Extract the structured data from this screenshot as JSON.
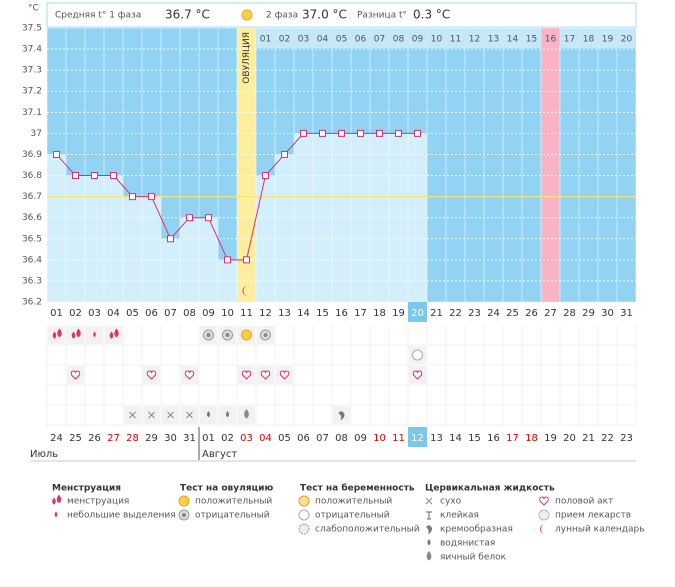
{
  "header": {
    "phase1_label": "Средняя t° 1 фаза",
    "phase1_value": "36.7 °C",
    "phase2_label": "2 фаза",
    "phase2_value": "37.0 °C",
    "diff_label": "Разница t°",
    "diff_value": "0.3 °C"
  },
  "chart_data": {
    "type": "line",
    "y_unit": "°C",
    "ylim": [
      36.2,
      37.5
    ],
    "yticks": [
      36.2,
      36.3,
      36.4,
      36.5,
      36.6,
      36.7,
      36.8,
      36.9,
      37,
      37.1,
      37.2,
      37.3,
      37.4,
      37.5
    ],
    "grid": true,
    "categories": [
      "01",
      "02",
      "03",
      "04",
      "05",
      "06",
      "07",
      "08",
      "09",
      "10",
      "11",
      "12",
      "13",
      "14",
      "15",
      "16",
      "17",
      "18",
      "19",
      "20",
      "21",
      "22",
      "23",
      "24",
      "25",
      "26",
      "27",
      "28",
      "29",
      "30",
      "31"
    ],
    "series": [
      {
        "color": "#d6336c",
        "values": [
          36.9,
          36.8,
          36.8,
          36.8,
          36.7,
          36.7,
          36.5,
          36.6,
          36.6,
          36.4,
          36.4,
          36.8,
          36.9,
          37,
          37,
          37,
          37,
          37,
          37,
          37,
          null,
          null,
          null,
          null,
          null,
          null,
          null,
          null,
          null,
          null,
          null
        ]
      }
    ],
    "coverline": 36.7,
    "coverline_color": "#f2e37a",
    "ovulation_label": "ОВУЛЯЦИЯ",
    "ovulation_day": 11,
    "post_ovulation_days": [
      "01",
      "02",
      "03",
      "04",
      "05",
      "06",
      "07",
      "08",
      "09",
      "10",
      "11",
      "12",
      "13",
      "14",
      "15",
      "16",
      "17",
      "18",
      "19",
      "20"
    ],
    "marked_day": 27,
    "today": 20,
    "plot_marks": [
      null,
      null,
      null,
      null,
      null,
      null,
      null,
      null,
      null,
      null,
      "лунный календарь",
      null,
      null,
      null,
      null,
      null,
      null,
      null,
      null,
      null,
      null,
      null,
      null,
      null,
      null,
      null,
      null,
      null,
      null,
      null,
      null
    ],
    "symptom_rows": [
      [
        "менструация",
        "менструация",
        "небольшие выделения",
        "менструация",
        null,
        null,
        null,
        null,
        "отрицательный",
        "отрицательный",
        "положительный",
        "отрицательный",
        null,
        null,
        null,
        null,
        null,
        null,
        null,
        null,
        null,
        null,
        null,
        null,
        null,
        null,
        null,
        null,
        null,
        null,
        null
      ],
      [
        null,
        null,
        null,
        null,
        null,
        null,
        null,
        null,
        null,
        null,
        null,
        null,
        null,
        null,
        null,
        null,
        null,
        null,
        null,
        "отрицательный ",
        null,
        null,
        null,
        null,
        null,
        null,
        null,
        null,
        null,
        null,
        null
      ],
      [
        null,
        "половой акт",
        null,
        null,
        null,
        "половой акт",
        null,
        "половой акт",
        null,
        null,
        "половой акт",
        "половой акт",
        "половой акт",
        null,
        null,
        null,
        null,
        null,
        null,
        "половой акт",
        null,
        null,
        null,
        null,
        null,
        null,
        null,
        null,
        null,
        null,
        null
      ],
      [
        null,
        null,
        null,
        null,
        null,
        null,
        null,
        null,
        null,
        null,
        null,
        null,
        null,
        null,
        null,
        null,
        null,
        null,
        null,
        null,
        null,
        null,
        null,
        null,
        null,
        null,
        null,
        null,
        null,
        null,
        null
      ],
      [
        null,
        null,
        null,
        null,
        "сухо",
        "сухо",
        "сухо",
        "сухо",
        "водянистая",
        "водянистая",
        "яичный белок",
        null,
        null,
        null,
        null,
        "кремообразная",
        null,
        null,
        null,
        null,
        null,
        null,
        null,
        null,
        null,
        null,
        null,
        null,
        null,
        null,
        null
      ]
    ],
    "dates": [
      "24",
      "25",
      "26",
      "27",
      "28",
      "29",
      "30",
      "31",
      "01",
      "02",
      "03",
      "04",
      "05",
      "06",
      "07",
      "08",
      "09",
      "10",
      "11",
      "12",
      "13",
      "14",
      "15",
      "16",
      "17",
      "18",
      "19",
      "20",
      "21",
      "22",
      "23"
    ],
    "date_colors": [
      "#333",
      "#333",
      "#333",
      "#d00",
      "#d00",
      "#333",
      "#333",
      "#333",
      "#333",
      "#333",
      "#d00",
      "#d00",
      "#333",
      "#333",
      "#333",
      "#333",
      "#333",
      "#d00",
      "#d00",
      "#333",
      "#333",
      "#333",
      "#333",
      "#333",
      "#d00",
      "#d00",
      "#333",
      "#333",
      "#333",
      "#333",
      "#333"
    ],
    "months": [
      {
        "label": "Июль",
        "day": 1
      },
      {
        "label": "Август",
        "day": 9
      }
    ]
  },
  "legend": [
    {
      "title": "Менструация",
      "items": [
        "менструация",
        "небольшие выделения"
      ]
    },
    {
      "title": "Тест на овуляцию",
      "items": [
        "положительный",
        "отрицательный"
      ]
    },
    {
      "title": "Тест на беременность",
      "items": [
        "положительный ",
        "отрицательный ",
        "слабоположительный"
      ]
    },
    {
      "title": "Цервикальная жидкость",
      "items": [
        "сухо",
        "клейкая",
        "кремообразная",
        "водянистая",
        "яичный белок"
      ]
    },
    {
      "title": "",
      "items": [
        "половой акт",
        "прием лекарств",
        "лунный календарь"
      ]
    }
  ]
}
